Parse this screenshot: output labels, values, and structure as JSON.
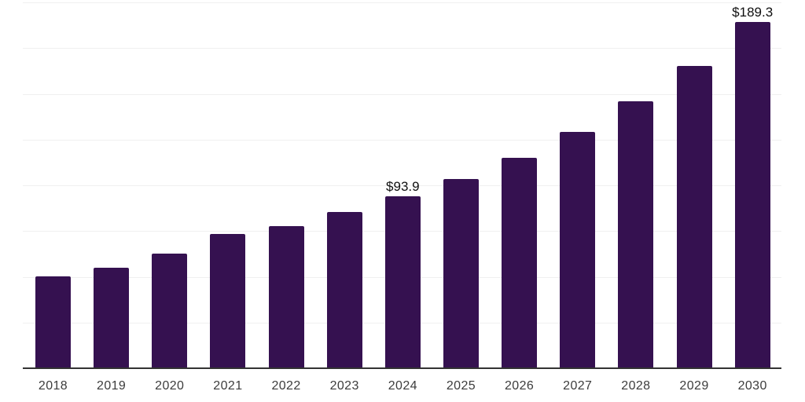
{
  "chart_data": {
    "type": "bar",
    "title": "",
    "xlabel": "",
    "ylabel": "",
    "categories": [
      "2018",
      "2019",
      "2020",
      "2021",
      "2022",
      "2023",
      "2024",
      "2025",
      "2026",
      "2027",
      "2028",
      "2029",
      "2030"
    ],
    "values": [
      50.1,
      55.1,
      62.6,
      73.4,
      77.7,
      85.4,
      93.9,
      103.4,
      115.2,
      129.1,
      145.8,
      165.4,
      189.3
    ],
    "point_labels": [
      "",
      "",
      "",
      "",
      "",
      "",
      "$93.9",
      "",
      "",
      "",
      "",
      "",
      "$189.3"
    ],
    "ylim": [
      0,
      200
    ],
    "gridline_step": 25,
    "grid": "horizontal-only",
    "y_tick_labels_visible": false,
    "legend": "none",
    "colors": {
      "bar": "#351150",
      "gridline": "#f0f0f0",
      "axis_line": "#333333",
      "x_label_text": "#3c3c3c",
      "value_label_text": "#101010",
      "background": "#ffffff"
    }
  }
}
